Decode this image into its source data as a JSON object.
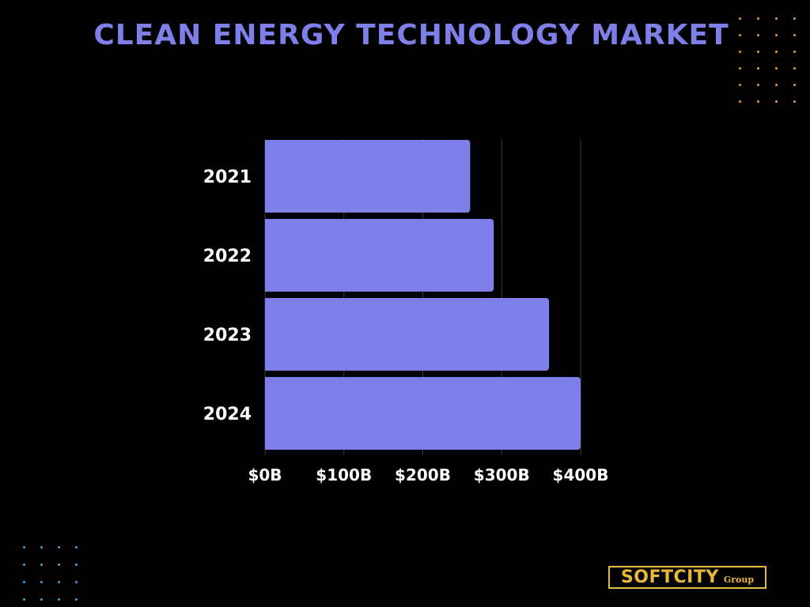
{
  "header": {
    "title": "CLEAN ENERGY TECHNOLOGY MARKET"
  },
  "colors": {
    "background": "#000000",
    "bar": "#7f7fea",
    "title": "#7f7fea",
    "grid": "#3a3a3a",
    "labels": "#ffffff",
    "orange_dots": "#e89b3c",
    "blue_dots": "#3fa9df",
    "logo": "#e8b93a"
  },
  "logo": {
    "main": "SOFTCITY",
    "sub": "Group"
  },
  "chart_data": {
    "type": "bar",
    "orientation": "horizontal",
    "categories": [
      "2021",
      "2022",
      "2023",
      "2024"
    ],
    "values": [
      260,
      290,
      360,
      400
    ],
    "unit": "B",
    "xlim": [
      0,
      400
    ],
    "x_ticks": [
      0,
      100,
      200,
      300,
      400
    ],
    "x_tick_labels": [
      "$0B",
      "$100B",
      "$200B",
      "$300B",
      "$400B"
    ],
    "title": "CLEAN ENERGY TECHNOLOGY MARKET",
    "xlabel": "",
    "ylabel": "",
    "grid": true,
    "legend": false
  }
}
